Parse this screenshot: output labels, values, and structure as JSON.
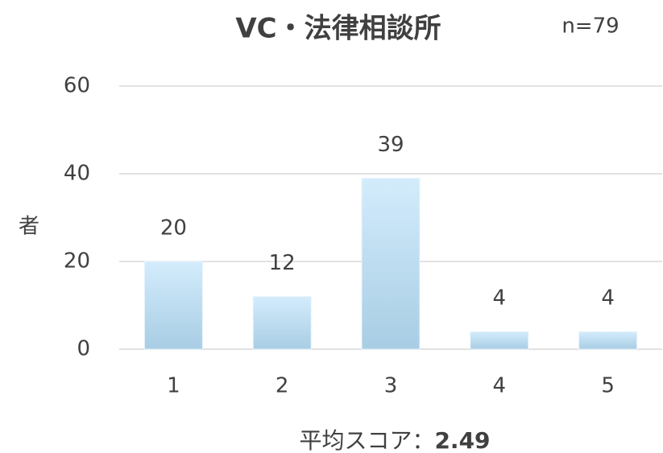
{
  "chart_data": {
    "type": "bar",
    "title": "VC・法律相談所",
    "subtitle": "n=79",
    "y_label": "者",
    "categories": [
      "1",
      "2",
      "3",
      "4",
      "5"
    ],
    "values": [
      20,
      12,
      39,
      4,
      4
    ],
    "color": "#bfe0f4",
    "ylim": [
      0,
      60
    ],
    "yticks": [
      0,
      20,
      40,
      60
    ],
    "grid": true,
    "footer_label": "平均スコア：",
    "average_score": 2.49
  }
}
